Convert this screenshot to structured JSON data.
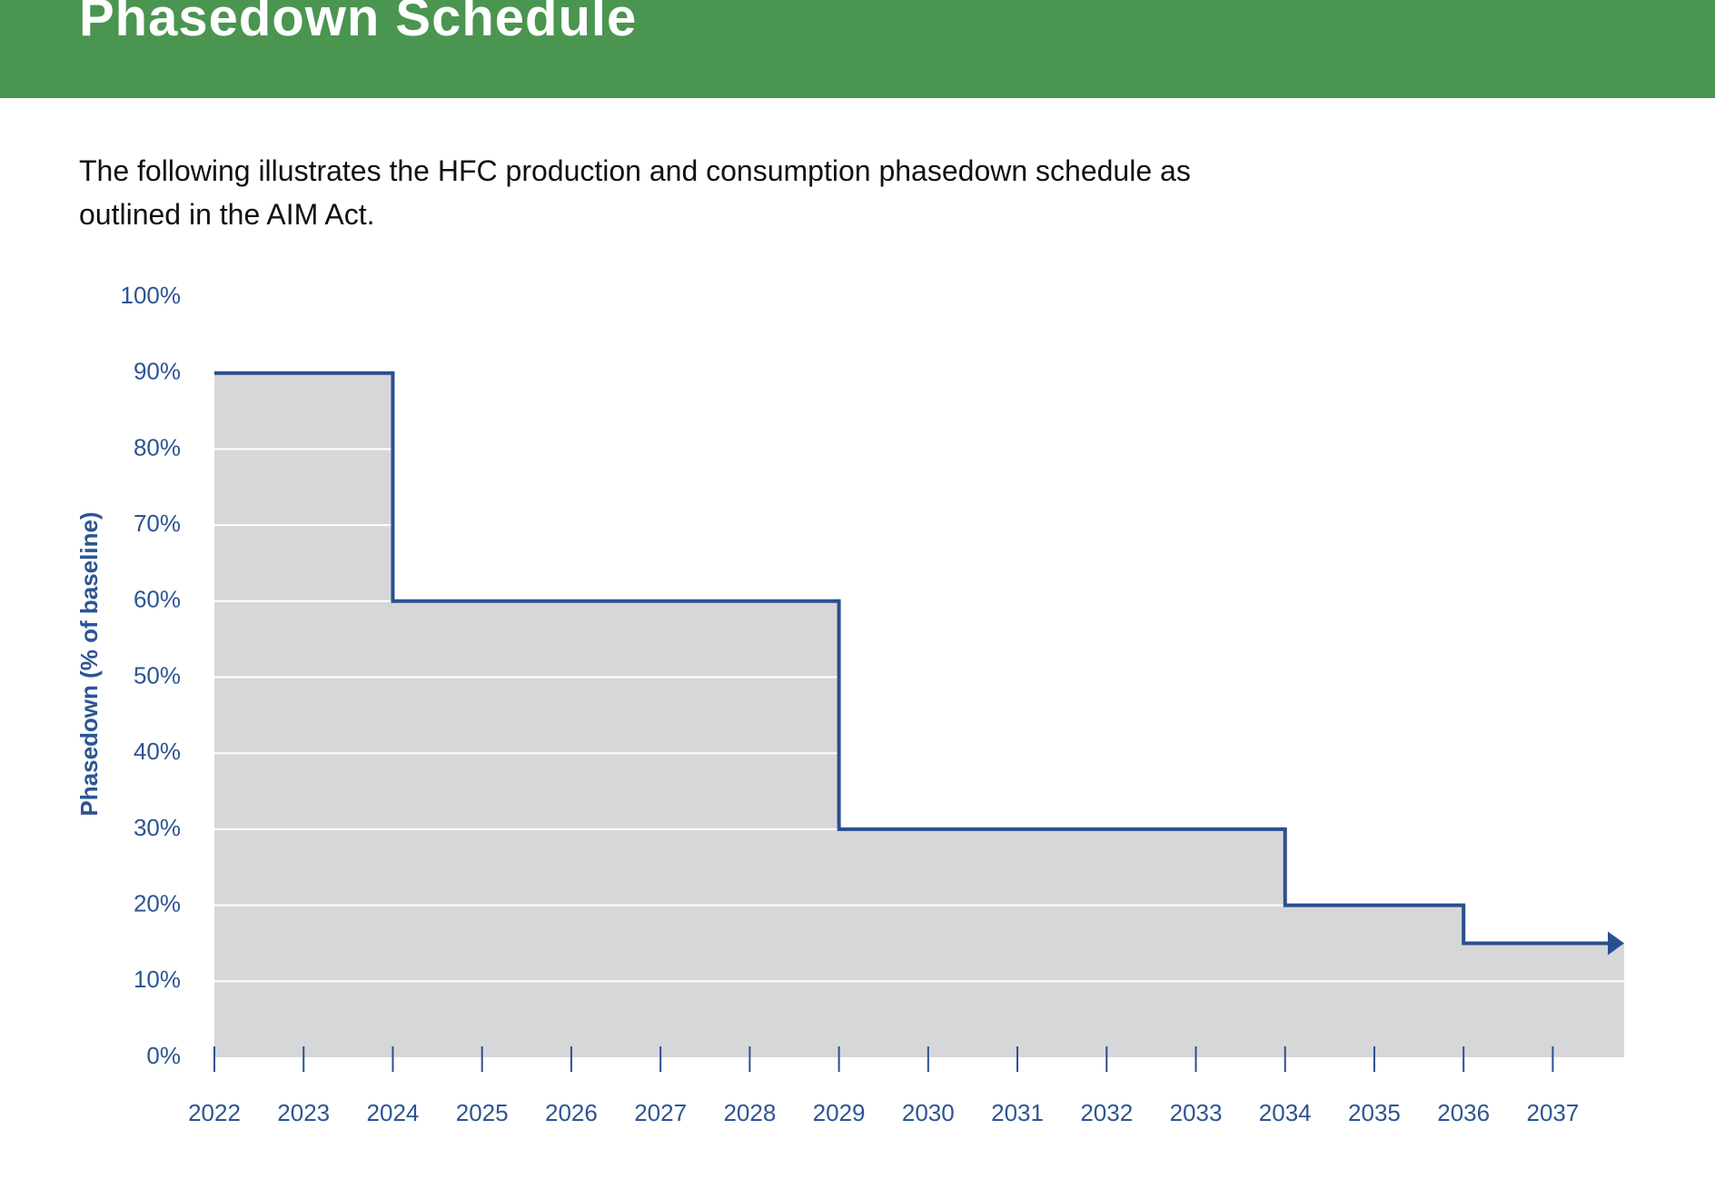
{
  "header": {
    "title": "Phasedown Schedule"
  },
  "intro": "The following illustrates the HFC production and consumption phasedown schedule as outlined in the AIM Act.",
  "chart_data": {
    "type": "step",
    "y_label": "Phasedown (% of baseline)",
    "x": [
      2022,
      2024,
      2029,
      2034,
      2036
    ],
    "values": [
      90,
      60,
      30,
      20,
      15
    ],
    "color": "#2b4f8e",
    "fill": "#d6d7d9",
    "xlim": [
      2022,
      2037.8
    ],
    "xticks": [
      2022,
      2023,
      2024,
      2025,
      2026,
      2027,
      2028,
      2029,
      2030,
      2031,
      2032,
      2033,
      2034,
      2035,
      2036,
      2037
    ],
    "ylim": [
      0,
      100
    ],
    "yticks": [
      {
        "value": 0,
        "label": "0%"
      },
      {
        "value": 10,
        "label": "10%"
      },
      {
        "value": 20,
        "label": "20%"
      },
      {
        "value": 30,
        "label": "30%"
      },
      {
        "value": 40,
        "label": "40%"
      },
      {
        "value": 50,
        "label": "50%"
      },
      {
        "value": 60,
        "label": "60%"
      },
      {
        "value": 70,
        "label": "70%"
      },
      {
        "value": 80,
        "label": "80%"
      },
      {
        "value": 90,
        "label": "90%"
      },
      {
        "value": 100,
        "label": "100%"
      }
    ],
    "grid": true
  }
}
